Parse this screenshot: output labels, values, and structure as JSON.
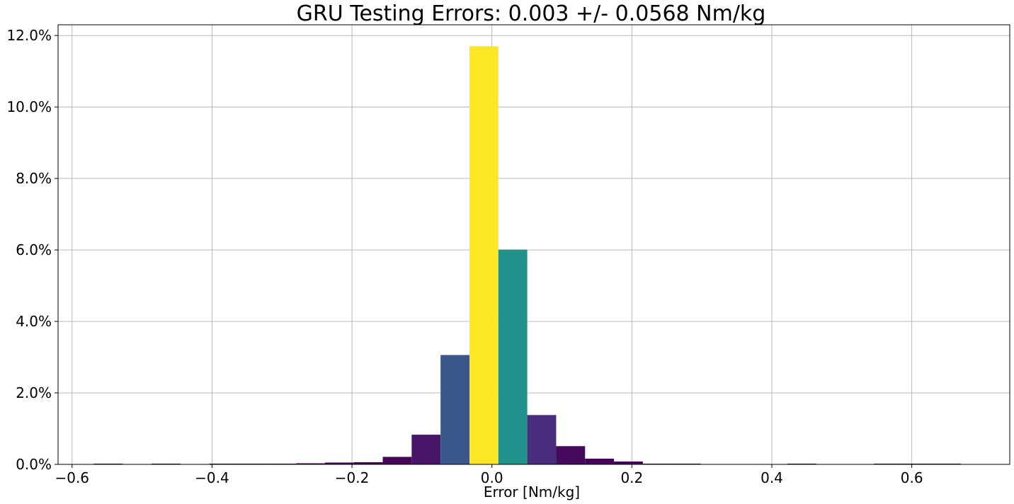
{
  "chart_data": {
    "type": "bar",
    "title": "GRU Testing Errors: 0.003 +/- 0.0568 Nm/kg",
    "xlabel": "Error [Nm/kg]",
    "ylabel": "",
    "xlim": [
      -0.62,
      0.74
    ],
    "ylim": [
      0,
      12.3
    ],
    "grid": true,
    "x_ticks": [
      {
        "value": -0.6,
        "label": "−0.6"
      },
      {
        "value": -0.4,
        "label": "−0.4"
      },
      {
        "value": -0.2,
        "label": "−0.2"
      },
      {
        "value": 0.0,
        "label": "0.0"
      },
      {
        "value": 0.2,
        "label": "0.2"
      },
      {
        "value": 0.4,
        "label": "0.4"
      },
      {
        "value": 0.6,
        "label": "0.6"
      }
    ],
    "y_ticks": [
      {
        "value": 0,
        "label": "0.0%"
      },
      {
        "value": 2,
        "label": "2.0%"
      },
      {
        "value": 4,
        "label": "4.0%"
      },
      {
        "value": 6,
        "label": "6.0%"
      },
      {
        "value": 8,
        "label": "8.0%"
      },
      {
        "value": 10,
        "label": "10.0%"
      },
      {
        "value": 12,
        "label": "12.0%"
      }
    ],
    "bin_width": 0.0413,
    "bins": [
      {
        "x0": -0.569,
        "value": 0.02,
        "color": "#440154"
      },
      {
        "x0": -0.4864,
        "value": 0.02,
        "color": "#440154"
      },
      {
        "x0": -0.4038,
        "value": 0.02,
        "color": "#440154"
      },
      {
        "x0": -0.3625,
        "value": 0.02,
        "color": "#440154"
      },
      {
        "x0": -0.3212,
        "value": 0.02,
        "color": "#440154"
      },
      {
        "x0": -0.2799,
        "value": 0.03,
        "color": "#440154"
      },
      {
        "x0": -0.2386,
        "value": 0.05,
        "color": "#440154"
      },
      {
        "x0": -0.1973,
        "value": 0.06,
        "color": "#440154"
      },
      {
        "x0": -0.156,
        "value": 0.21,
        "color": "#45065a"
      },
      {
        "x0": -0.1147,
        "value": 0.83,
        "color": "#481467"
      },
      {
        "x0": -0.0734,
        "value": 3.06,
        "color": "#3b568b"
      },
      {
        "x0": -0.0321,
        "value": 11.7,
        "color": "#fde725"
      },
      {
        "x0": 0.0092,
        "value": 6.01,
        "color": "#21918c"
      },
      {
        "x0": 0.0505,
        "value": 1.38,
        "color": "#472d7b"
      },
      {
        "x0": 0.0918,
        "value": 0.51,
        "color": "#460a5d"
      },
      {
        "x0": 0.1331,
        "value": 0.16,
        "color": "#440256"
      },
      {
        "x0": 0.1744,
        "value": 0.08,
        "color": "#440154"
      },
      {
        "x0": 0.2157,
        "value": 0.02,
        "color": "#440154"
      },
      {
        "x0": 0.257,
        "value": 0.02,
        "color": "#440154"
      },
      {
        "x0": 0.4222,
        "value": 0.02,
        "color": "#440154"
      },
      {
        "x0": 0.5461,
        "value": 0.02,
        "color": "#440154"
      },
      {
        "x0": 0.5874,
        "value": 0.02,
        "color": "#440154"
      },
      {
        "x0": 0.6287,
        "value": 0.02,
        "color": "#440154"
      }
    ]
  }
}
